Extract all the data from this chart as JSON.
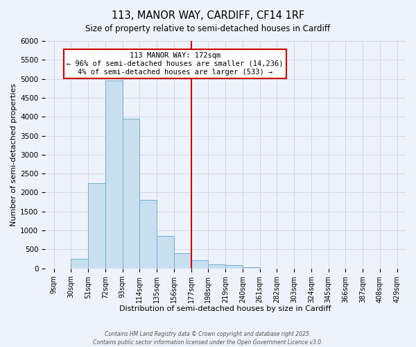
{
  "title": "113, MANOR WAY, CARDIFF, CF14 1RF",
  "subtitle": "Size of property relative to semi-detached houses in Cardiff",
  "xlabel": "Distribution of semi-detached houses by size in Cardiff",
  "ylabel": "Number of semi-detached properties",
  "bin_labels": [
    "9sqm",
    "30sqm",
    "51sqm",
    "72sqm",
    "93sqm",
    "114sqm",
    "135sqm",
    "156sqm",
    "177sqm",
    "198sqm",
    "219sqm",
    "240sqm",
    "261sqm",
    "282sqm",
    "303sqm",
    "324sqm",
    "345sqm",
    "366sqm",
    "387sqm",
    "408sqm",
    "429sqm"
  ],
  "bin_edges": [
    9,
    30,
    51,
    72,
    93,
    114,
    135,
    156,
    177,
    198,
    219,
    240,
    261,
    282,
    303,
    324,
    345,
    366,
    387,
    408,
    429
  ],
  "bar_heights": [
    0,
    260,
    2250,
    4950,
    3950,
    1800,
    850,
    400,
    210,
    100,
    80,
    30,
    0,
    0,
    0,
    0,
    0,
    0,
    0,
    0
  ],
  "bar_color": "#c8dff0",
  "bar_edgecolor": "#6aafd4",
  "vline_x": 177,
  "vline_color": "#cc0000",
  "ylim": [
    0,
    6000
  ],
  "yticks": [
    0,
    500,
    1000,
    1500,
    2000,
    2500,
    3000,
    3500,
    4000,
    4500,
    5000,
    5500,
    6000
  ],
  "annotation_title": "113 MANOR WAY: 172sqm",
  "annotation_line1": "← 96% of semi-detached houses are smaller (14,236)",
  "annotation_line2": "4% of semi-detached houses are larger (533) →",
  "annotation_box_facecolor": "#ffffff",
  "annotation_box_edgecolor": "#cc0000",
  "grid_color": "#c8d4e8",
  "background_color": "#eef2fa",
  "footer1": "Contains HM Land Registry data © Crown copyright and database right 2025.",
  "footer2": "Contains public sector information licensed under the Open Government Licence v3.0."
}
